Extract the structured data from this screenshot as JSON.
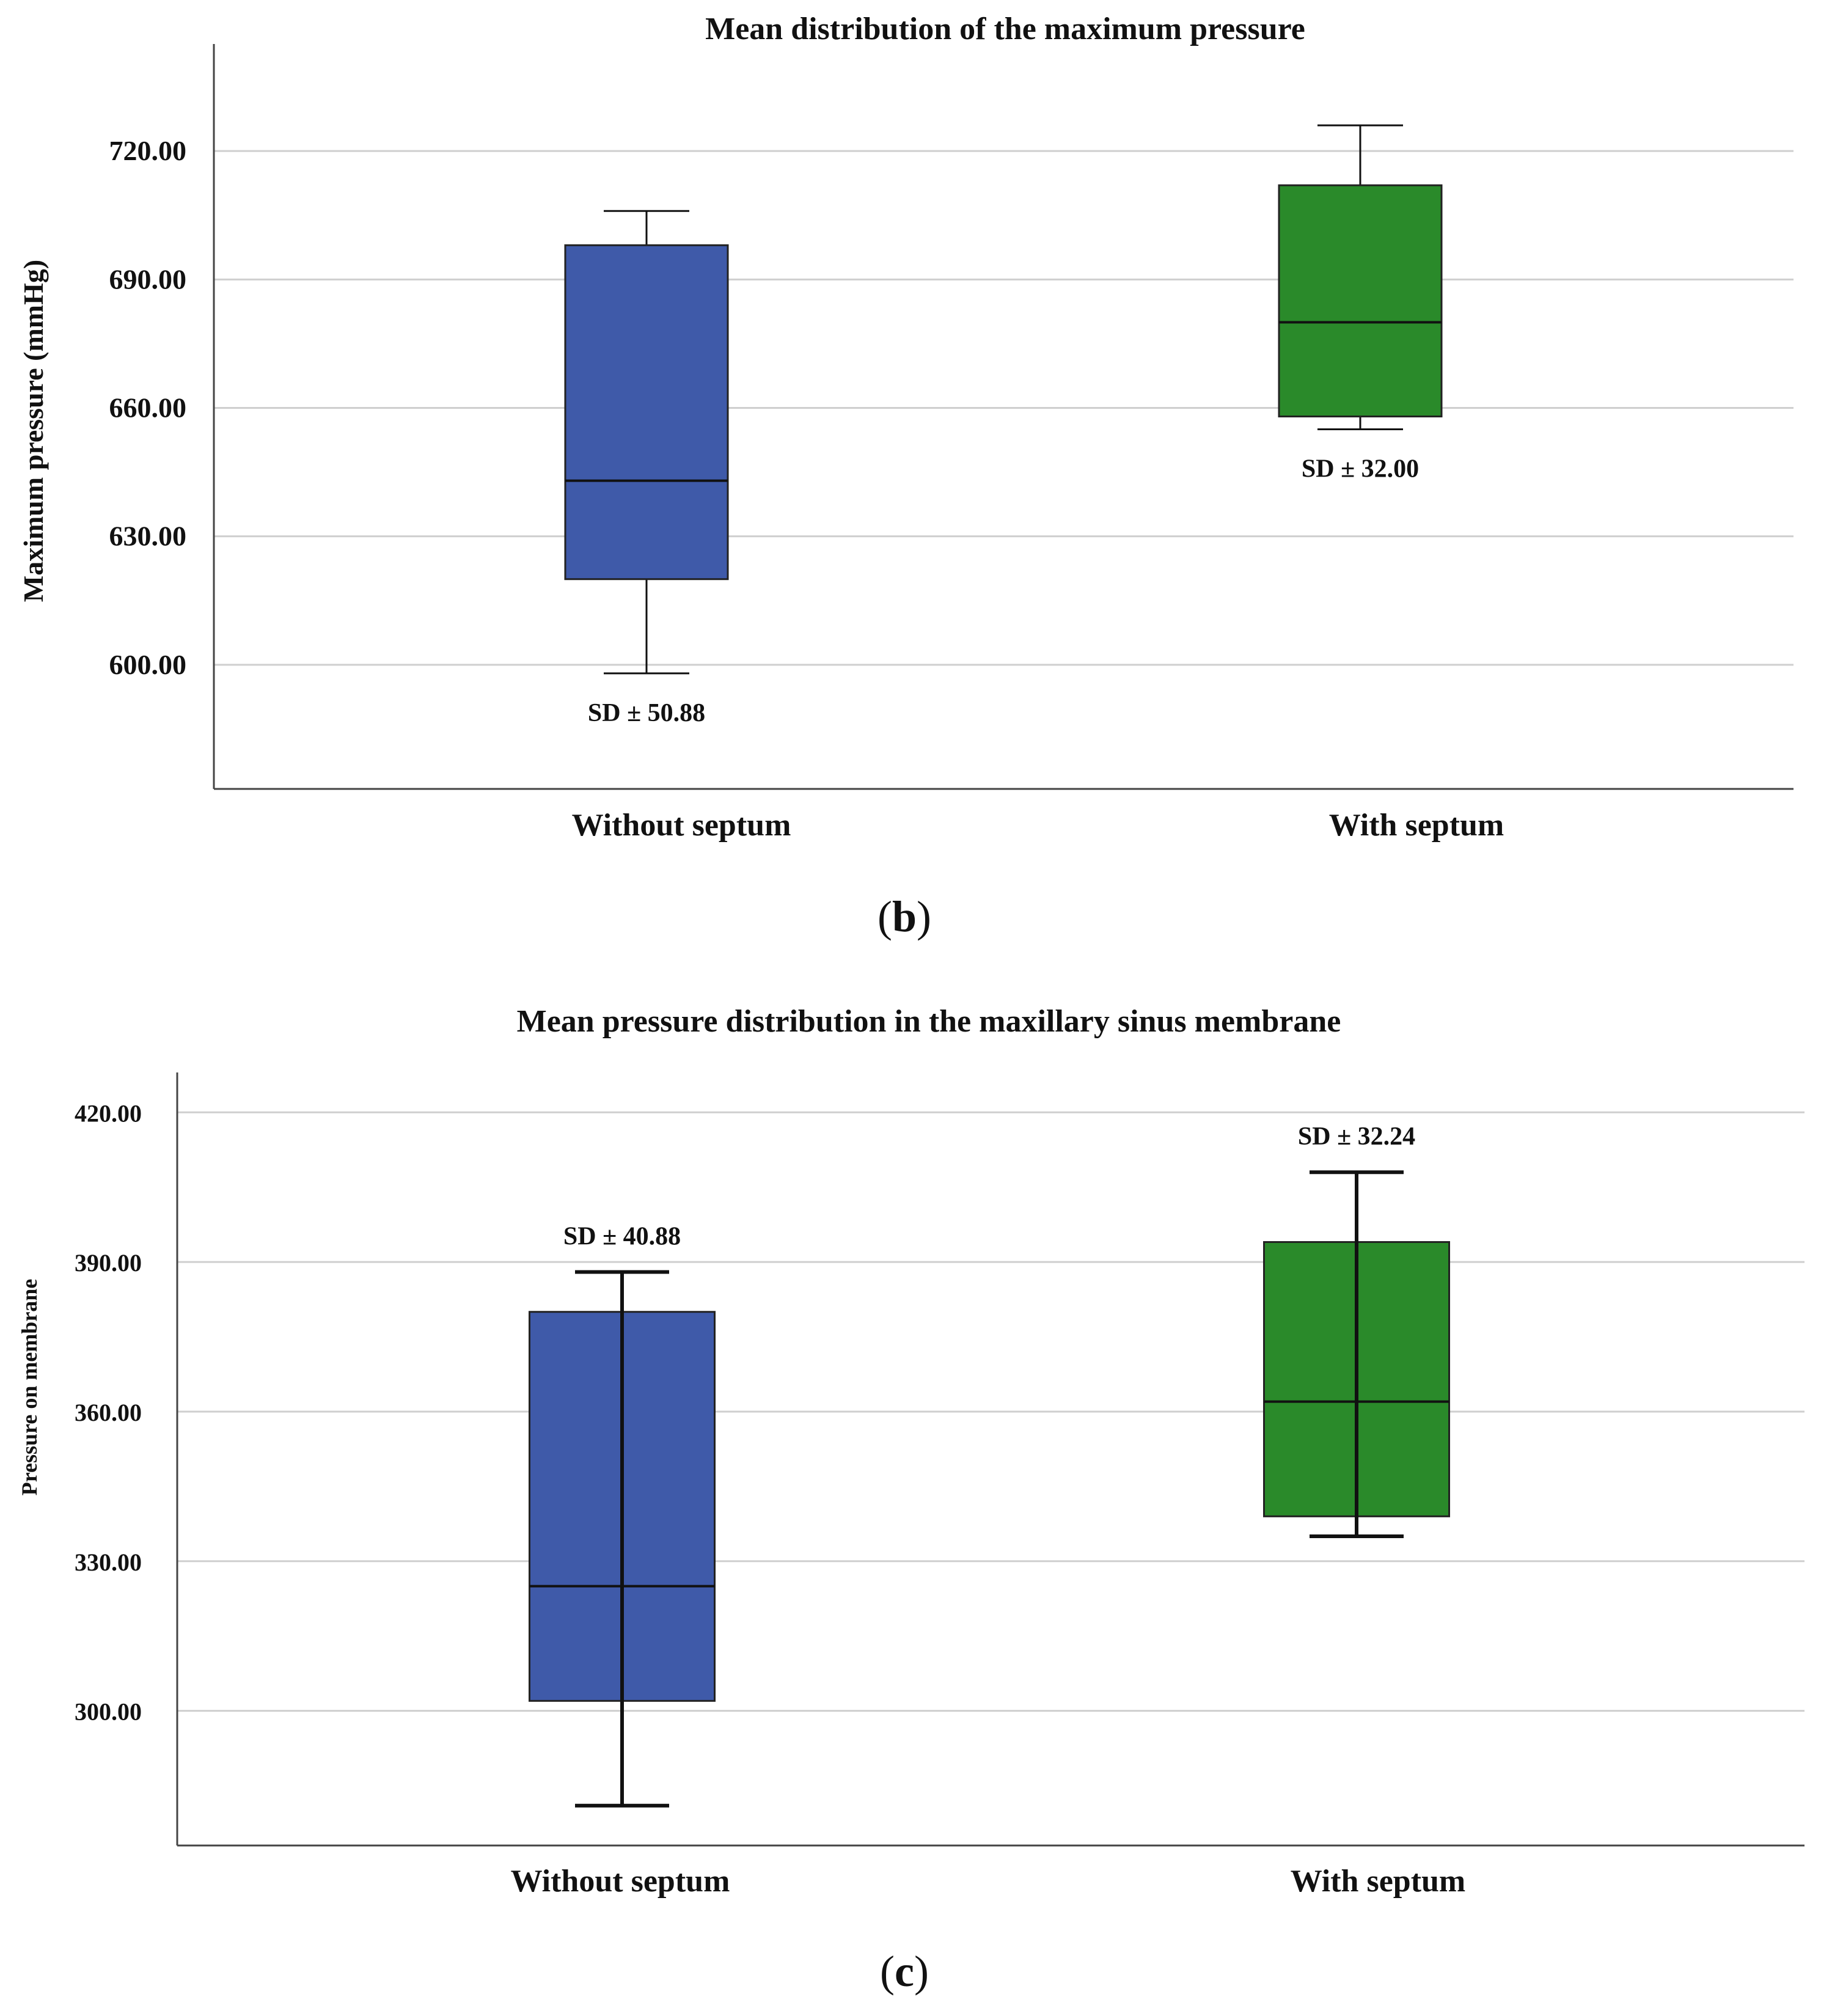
{
  "chart_data": [
    {
      "type": "boxplot",
      "panel_label": {
        "open": "(",
        "letter": "b",
        "close": ")"
      },
      "title": "Mean distribution of the maximum pressure",
      "xlabel": "",
      "ylabel": "Maximum pressure (mmHg)",
      "ylim": [
        571,
        745
      ],
      "yticks": [
        600,
        630,
        660,
        690,
        720
      ],
      "ytick_labels": [
        "600.00",
        "630.00",
        "660.00",
        "690.00",
        "720.00"
      ],
      "grid": true,
      "categories": [
        "Without septum",
        "With septum"
      ],
      "boxes": [
        {
          "category": "Without septum",
          "min": 598,
          "q1": 620,
          "median": 643,
          "q3": 698,
          "max": 706,
          "color": "#3F5AA9",
          "annotation": "SD ± 50.88",
          "annotation_position": "below"
        },
        {
          "category": "With septum",
          "min": 655,
          "q1": 658,
          "median": 680,
          "q3": 712,
          "max": 726,
          "color": "#2A8A2A",
          "annotation": "SD ± 32.00",
          "annotation_position": "below"
        }
      ]
    },
    {
      "type": "boxplot",
      "panel_label": {
        "open": "(",
        "letter": "c",
        "close": ")"
      },
      "title": "Mean pressure distribution in the maxillary sinus membrane",
      "xlabel": "",
      "ylabel": "Pressure on membrane",
      "ylim": [
        273,
        428
      ],
      "yticks": [
        300,
        330,
        360,
        390,
        420
      ],
      "ytick_labels": [
        "300.00",
        "330.00",
        "360.00",
        "390.00",
        "420.00"
      ],
      "grid": true,
      "categories": [
        "Without septum",
        "With septum"
      ],
      "boxes": [
        {
          "category": "Without septum",
          "min": 281,
          "q1": 302,
          "median": 325,
          "q3": 380,
          "max": 388,
          "color": "#3F5AA9",
          "annotation": "SD  ±  40.88",
          "annotation_position": "above"
        },
        {
          "category": "With septum",
          "min": 335,
          "q1": 339,
          "median": 362,
          "q3": 394,
          "max": 408,
          "color": "#2A8A2A",
          "annotation": "SD ± 32.24",
          "annotation_position": "above"
        }
      ]
    }
  ]
}
